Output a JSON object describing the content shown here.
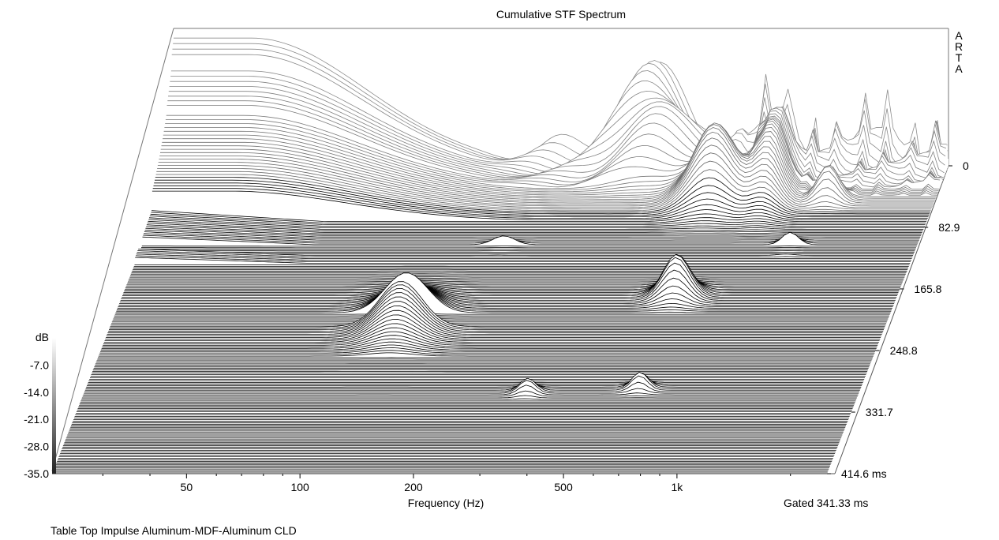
{
  "chart_data": {
    "type": "waterfall",
    "title": "Cumulative STF Spectrum",
    "brand": "ARTA",
    "xlabel": "Frequency (Hz)",
    "x_scale": "log",
    "x_ticks": [
      {
        "value": 50,
        "label": "50"
      },
      {
        "value": 100,
        "label": "100"
      },
      {
        "value": 200,
        "label": "200"
      },
      {
        "value": 500,
        "label": "500"
      },
      {
        "value": 1000,
        "label": "1k"
      }
    ],
    "xlim": [
      22,
      2500
    ],
    "time_axis": {
      "unit": "ms",
      "ticks": [
        {
          "value": 0,
          "label": "0"
        },
        {
          "value": 82.9,
          "label": "82.9"
        },
        {
          "value": 165.8,
          "label": "165.8"
        },
        {
          "value": 248.8,
          "label": "248.8"
        },
        {
          "value": 331.7,
          "label": "331.7"
        },
        {
          "value": 414.6,
          "label": "414.6 ms"
        }
      ],
      "range": [
        0,
        414.6
      ]
    },
    "z_axis": {
      "label": "dB",
      "ticks": [
        "-7.0",
        "-14.0",
        "-21.0",
        "-28.0",
        "-35.0"
      ],
      "range": [
        -35,
        0
      ]
    },
    "gated_label": "Gated 341.33 ms",
    "footer": "Table Top Impulse Aluminum-MDF-Aluminum CLD",
    "slices": 200,
    "gap_rows": [
      [
        52,
        58
      ],
      [
        96,
        104
      ],
      [
        124,
        132
      ],
      [
        152,
        160
      ]
    ],
    "features": [
      {
        "f": 420,
        "t": 8,
        "h": 0.6,
        "bw": 0.12,
        "dt": 12
      },
      {
        "f": 650,
        "t": 45,
        "h": 0.55,
        "bw": 0.08,
        "dt": 14
      },
      {
        "f": 900,
        "t": 30,
        "h": 0.5,
        "bw": 0.05,
        "dt": 20
      },
      {
        "f": 1300,
        "t": 45,
        "h": 0.25,
        "bw": 0.04,
        "dt": 6
      },
      {
        "f": 130,
        "t": 210,
        "h": 0.35,
        "bw": 0.08,
        "dt": 20
      },
      {
        "f": 650,
        "t": 175,
        "h": 0.3,
        "bw": 0.05,
        "dt": 8
      },
      {
        "f": 1150,
        "t": 110,
        "h": 0.12,
        "bw": 0.03,
        "dt": 5
      },
      {
        "f": 200,
        "t": 110,
        "h": 0.1,
        "bw": 0.04,
        "dt": 4
      },
      {
        "f": 650,
        "t": 300,
        "h": 0.12,
        "bw": 0.03,
        "dt": 4
      },
      {
        "f": 330,
        "t": 305,
        "h": 0.1,
        "bw": 0.03,
        "dt": 4
      }
    ],
    "colors": {
      "line": "#000000",
      "fill": "#ffffff",
      "grid": "#bbbbbb"
    },
    "grid": false
  }
}
